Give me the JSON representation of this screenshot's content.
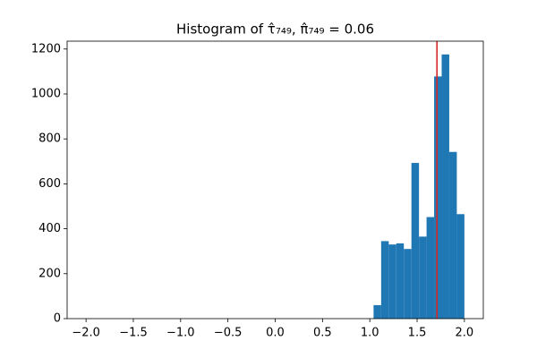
{
  "chart_data": {
    "type": "histogram",
    "title": "Histogram of τ̂₇₄₉, π̂₇₄₉ = 0.06",
    "bins": [
      -2,
      -1.92,
      -1.84,
      -1.76,
      -1.68,
      -1.6,
      -1.52,
      -1.44,
      -1.36,
      -1.28,
      -1.2,
      -1.12,
      -1.04,
      -0.96,
      -0.88,
      -0.8,
      -0.72,
      -0.64,
      -0.56,
      -0.48,
      -0.4,
      -0.32,
      -0.24,
      -0.16,
      -0.08,
      0,
      0.08,
      0.16,
      0.24,
      0.32,
      0.4,
      0.48,
      0.56,
      0.64,
      0.72,
      0.8,
      0.88,
      0.96,
      1.04,
      1.12,
      1.2,
      1.28,
      1.36,
      1.44,
      1.52,
      1.6,
      1.68,
      1.76,
      1.84,
      1.92,
      2
    ],
    "counts": [
      0,
      0,
      0,
      0,
      0,
      0,
      0,
      0,
      0,
      0,
      0,
      0,
      0,
      0,
      0,
      0,
      0,
      0,
      0,
      0,
      0,
      0,
      0,
      0,
      0,
      0,
      0,
      0,
      0,
      0,
      0,
      0,
      0,
      0,
      0,
      0,
      0,
      0,
      60,
      345,
      330,
      335,
      310,
      693,
      365,
      452,
      1078,
      1176,
      742,
      465
    ],
    "color": "#1f77b4",
    "vline": {
      "x": 1.71,
      "color": "#d62728"
    },
    "xlim": [
      -2.2,
      2.2
    ],
    "ylim": [
      0,
      1235
    ],
    "xticks": [
      {
        "value": -2,
        "label": "−2.0"
      },
      {
        "value": -1.5,
        "label": "−1.5"
      },
      {
        "value": -1,
        "label": "−1.0"
      },
      {
        "value": -0.5,
        "label": "−0.5"
      },
      {
        "value": 0,
        "label": "0.0"
      },
      0.5,
      {
        "value": 1,
        "label": "1.0"
      },
      1.5,
      {
        "value": 2,
        "label": "2.0"
      }
    ],
    "yticks": [
      0,
      200,
      400,
      600,
      800,
      1000,
      1200
    ]
  }
}
